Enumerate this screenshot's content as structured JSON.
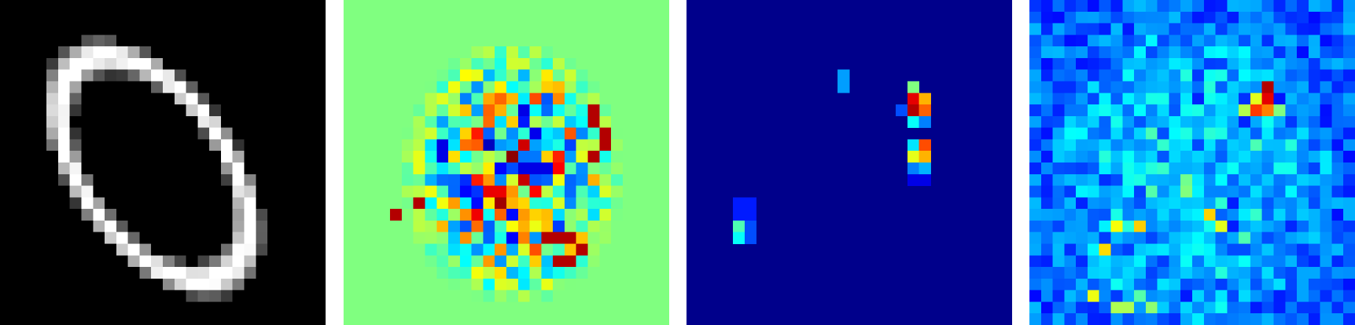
{
  "figure": {
    "grid_size": 28,
    "panels": [
      {
        "id": "input-digit",
        "colormap": "gray",
        "background": "#000000"
      },
      {
        "id": "relevance-map",
        "colormap": "jet",
        "background": "#80ff80"
      },
      {
        "id": "sparse-attribution-map",
        "colormap": "jet",
        "background": "#00008b"
      },
      {
        "id": "noisy-attribution-map",
        "colormap": "jet",
        "background": "#00008b"
      }
    ],
    "colors": {
      "dark_red": "#800000",
      "red": "#ff2000",
      "orange": "#ff8c00",
      "yellow": "#ffff00",
      "cyan": "#33ffcc",
      "light_blue": "#00bfff",
      "blue": "#0000ff",
      "dark_blue": "#00008b",
      "green": "#80ff80"
    }
  }
}
